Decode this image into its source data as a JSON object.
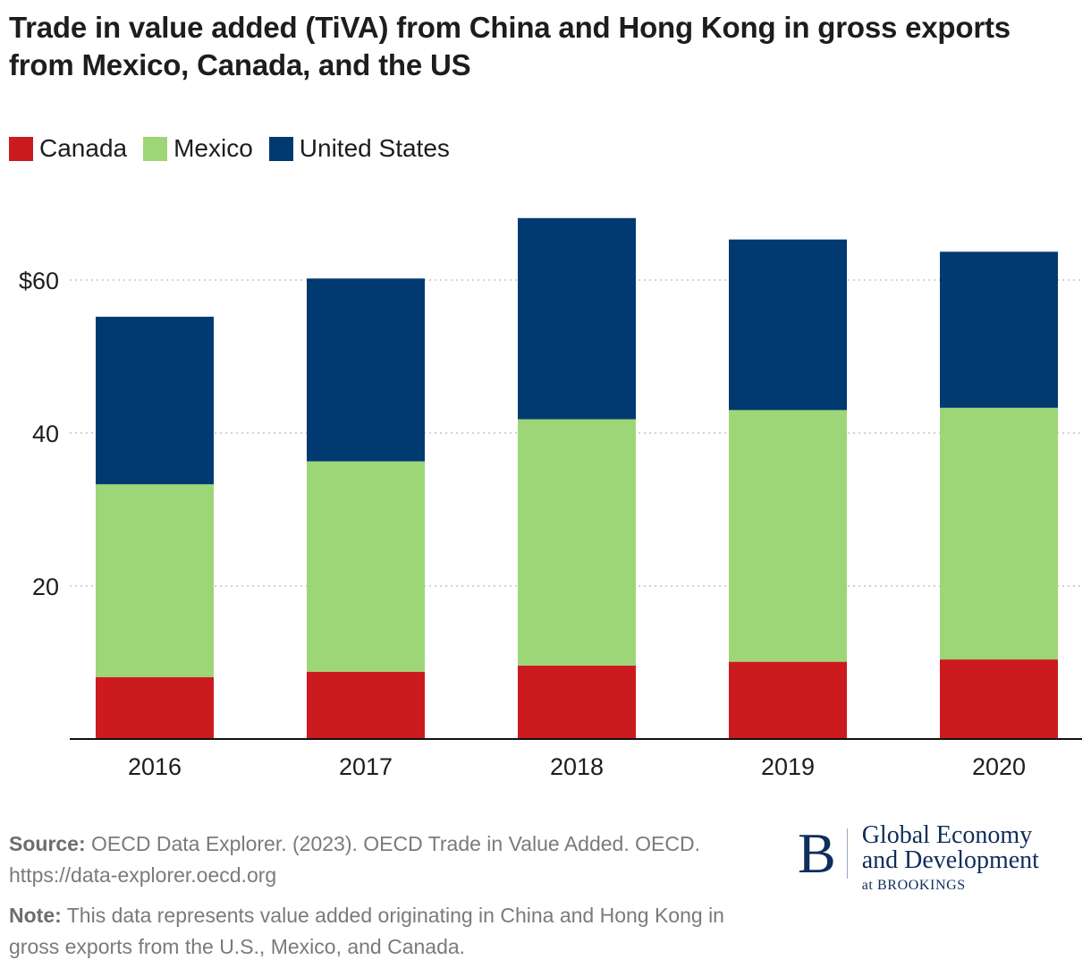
{
  "header": {
    "title": "Trade in value added (TiVA) from China and Hong Kong in gross exports from Mexico, Canada, and the US"
  },
  "legend": [
    {
      "label": "Canada",
      "color": "#cc1b1f"
    },
    {
      "label": "Mexico",
      "color": "#9dd676"
    },
    {
      "label": "United States",
      "color": "#013a70"
    }
  ],
  "chart_data": {
    "type": "bar",
    "stacked": true,
    "title": "Trade in value added (TiVA) from China and Hong Kong in gross exports from Mexico, Canada, and the US",
    "xlabel": "",
    "ylabel": "",
    "categories": [
      "2016",
      "2017",
      "2018",
      "2019",
      "2020"
    ],
    "series": [
      {
        "name": "Canada",
        "color": "#cc1b1f",
        "values": [
          8.1,
          8.8,
          9.6,
          10.1,
          10.4
        ]
      },
      {
        "name": "Mexico",
        "color": "#9dd676",
        "values": [
          25.2,
          27.5,
          32.2,
          32.9,
          32.9
        ]
      },
      {
        "name": "United States",
        "color": "#013a70",
        "values": [
          21.9,
          23.9,
          26.3,
          22.3,
          20.4
        ]
      }
    ],
    "yticks": [
      {
        "value": 20,
        "label": "20"
      },
      {
        "value": 40,
        "label": "40"
      },
      {
        "value": 60,
        "label": "$60"
      }
    ],
    "ylim": [
      0,
      70
    ],
    "grid": true,
    "grid_style": "dotted",
    "legend_position": "top-left"
  },
  "footer": {
    "source_label": "Source:",
    "source_text": " OECD Data Explorer. (2023). OECD Trade in Value Added. OECD. https://data-explorer.oecd.org",
    "note_label": "Note:",
    "note_text": " This data represents value added originating in China and Hong Kong in gross exports from the U.S., Mexico, and Canada."
  },
  "logo": {
    "mark": "B",
    "line1": "Global Economy",
    "line2": "and Development",
    "line3": "at BROOKINGS"
  }
}
